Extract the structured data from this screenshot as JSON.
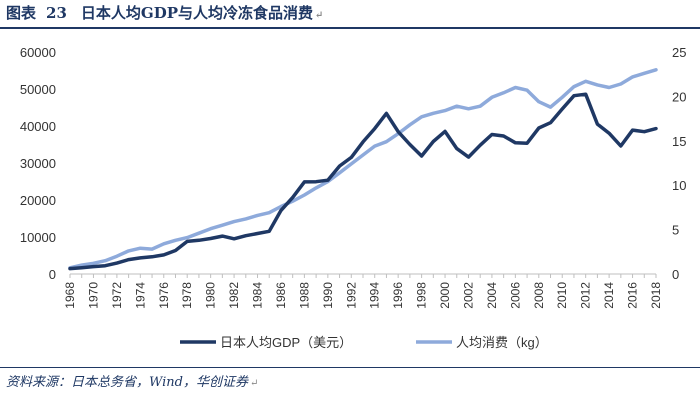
{
  "header": {
    "label": "图表",
    "number": "23",
    "text": "日本人均GDP与人均冷冻食品消费",
    "mark": "↵"
  },
  "footer": {
    "source": "资料来源：日本总务省，Wind，华创证券",
    "mark": "↵"
  },
  "chart_data": {
    "type": "line",
    "title": "日本人均GDP与人均冷冻食品消费",
    "x": [
      1968,
      1969,
      1970,
      1971,
      1972,
      1973,
      1974,
      1975,
      1976,
      1977,
      1978,
      1979,
      1980,
      1981,
      1982,
      1983,
      1984,
      1985,
      1986,
      1987,
      1988,
      1989,
      1990,
      1991,
      1992,
      1993,
      1994,
      1995,
      1996,
      1997,
      1998,
      1999,
      2000,
      2001,
      2002,
      2003,
      2004,
      2005,
      2006,
      2007,
      2008,
      2009,
      2010,
      2011,
      2012,
      2013,
      2014,
      2015,
      2016,
      2017,
      2018
    ],
    "x_tick_labels": [
      "1968",
      "1970",
      "1972",
      "1974",
      "1976",
      "1978",
      "1980",
      "1982",
      "1984",
      "1986",
      "1988",
      "1990",
      "1992",
      "1994",
      "1996",
      "1998",
      "2000",
      "2002",
      "2004",
      "2006",
      "2008",
      "2010",
      "2012",
      "2014",
      "2016",
      "2018"
    ],
    "series": [
      {
        "name": "日本人均GDP（美元）",
        "axis": "left",
        "color": "#1f3864",
        "values": [
          1450,
          1700,
          2000,
          2250,
          2950,
          3900,
          4350,
          4650,
          5150,
          6350,
          8800,
          9100,
          9600,
          10250,
          9500,
          10350,
          10950,
          11550,
          17200,
          20700,
          24900,
          24950,
          25350,
          29200,
          31500,
          35700,
          39300,
          43400,
          38450,
          35000,
          31900,
          35800,
          38550,
          33900,
          31600,
          34800,
          37700,
          37300,
          35450,
          35350,
          39450,
          40900,
          44600,
          48200,
          48600,
          40500,
          38050,
          34600,
          38900,
          38450,
          39300
        ]
      },
      {
        "name": "人均消费（kg）",
        "axis": "right",
        "color": "#8eaadb",
        "values": [
          0.7,
          1.0,
          1.2,
          1.5,
          2.0,
          2.6,
          2.9,
          2.8,
          3.4,
          3.8,
          4.1,
          4.6,
          5.1,
          5.5,
          5.9,
          6.2,
          6.6,
          6.9,
          7.6,
          8.2,
          8.9,
          9.7,
          10.4,
          11.4,
          12.4,
          13.4,
          14.4,
          14.9,
          15.8,
          16.8,
          17.7,
          18.1,
          18.4,
          18.9,
          18.6,
          18.9,
          19.9,
          20.4,
          21.0,
          20.7,
          19.4,
          18.8,
          19.9,
          21.1,
          21.7,
          21.3,
          21.0,
          21.4,
          22.2,
          22.6,
          23.0
        ]
      }
    ],
    "y_left": {
      "min": 0,
      "max": 60000,
      "ticks": [
        0,
        10000,
        20000,
        30000,
        40000,
        50000,
        60000
      ]
    },
    "y_right": {
      "min": 0,
      "max": 25,
      "ticks": [
        0,
        5,
        10,
        15,
        20,
        25
      ]
    },
    "legend": {
      "placement": "bottom"
    }
  }
}
